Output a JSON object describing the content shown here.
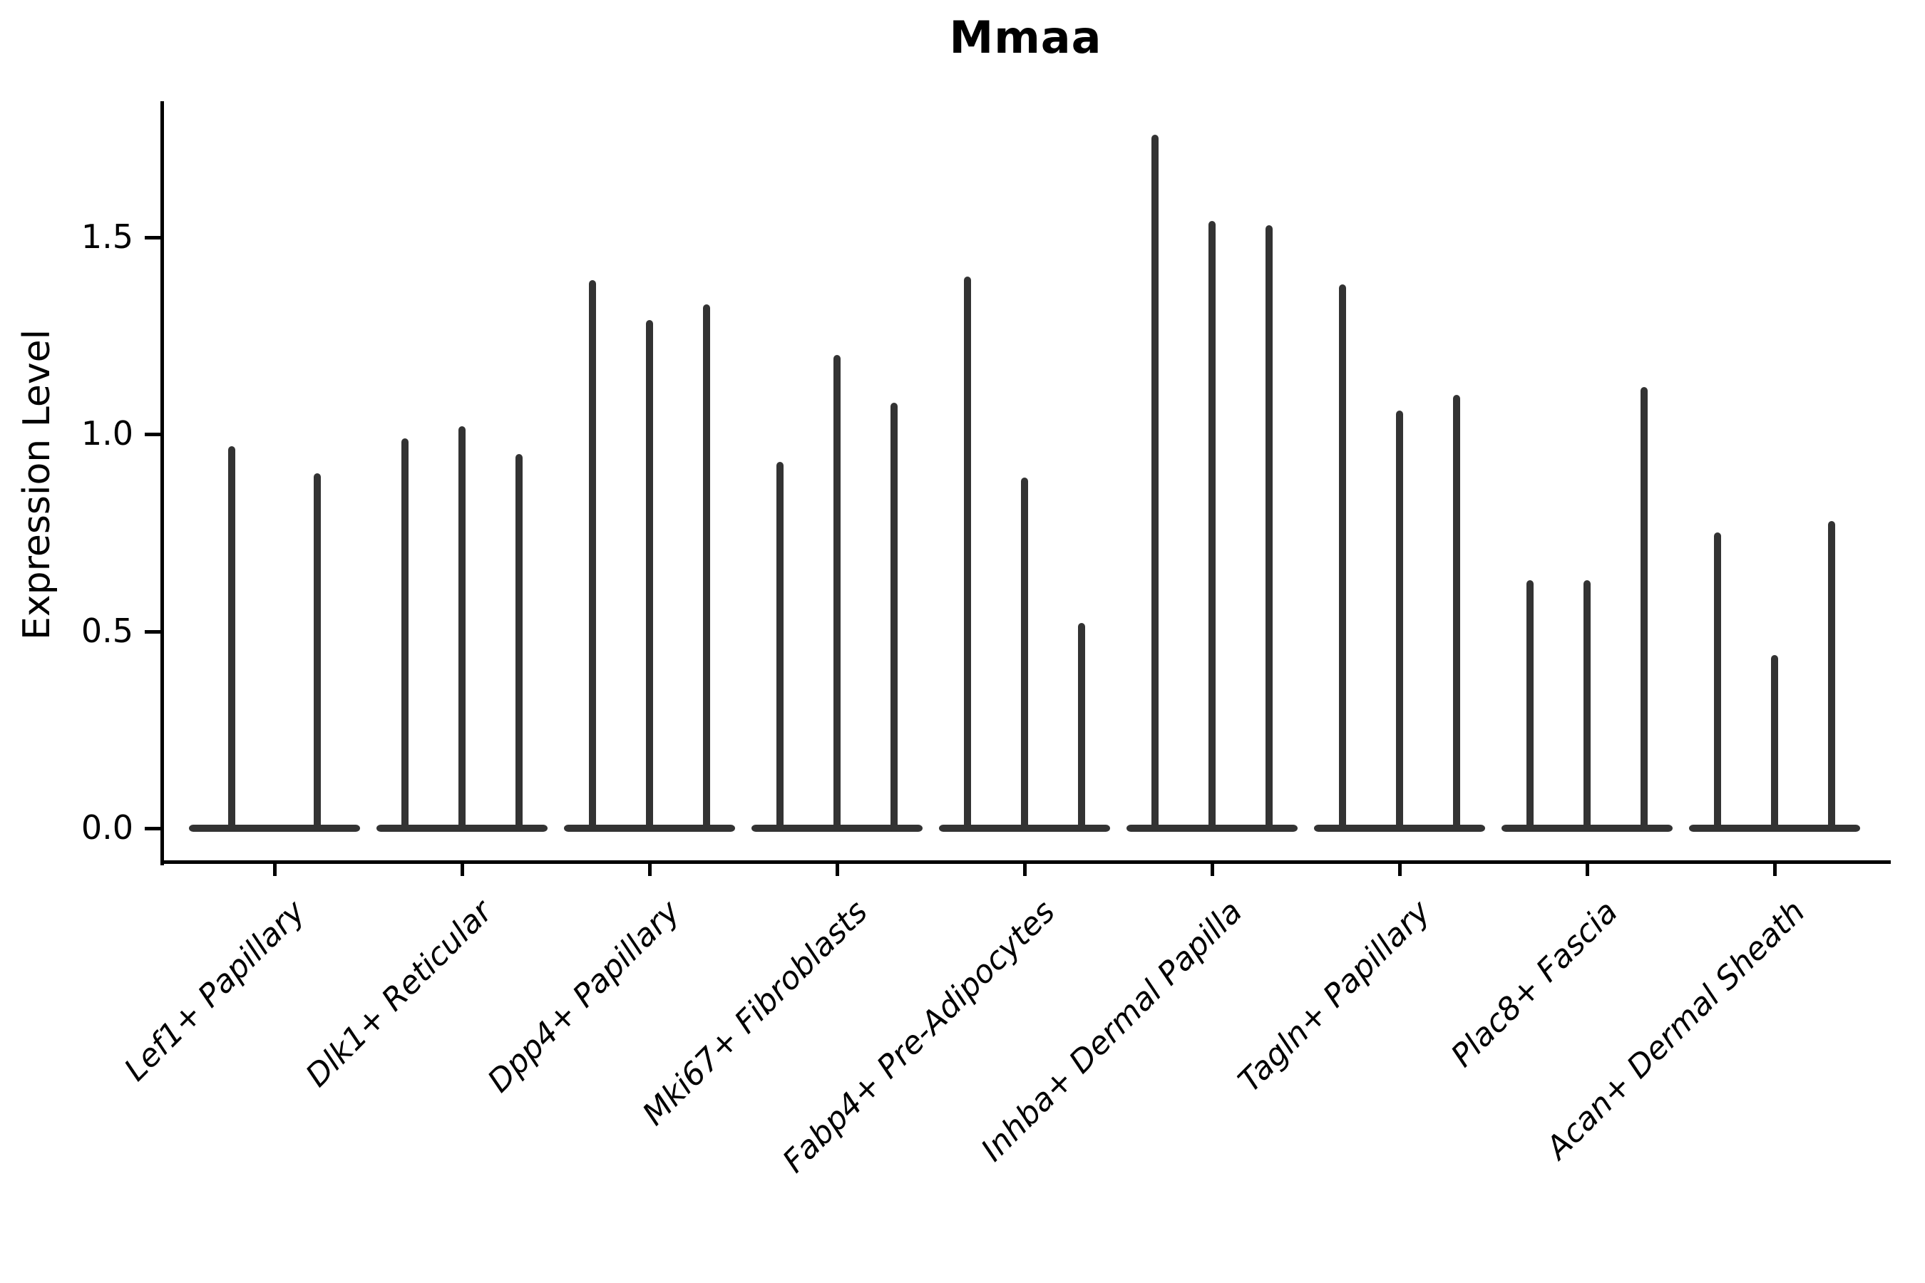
{
  "chart_data": {
    "type": "violin",
    "title": "Mmaa",
    "ylabel": "Expression Level",
    "yticks": [
      0.0,
      0.5,
      1.0,
      1.5
    ],
    "ylim": [
      -0.085,
      1.845
    ],
    "baseline_value": 0.0,
    "legend": "none",
    "grid": false,
    "note": "Seurat-style stacked violin plot; each cluster shows thin violins (bulk of density at 0) whose spikes reach the listed maximum expression values",
    "groups": [
      {
        "label": "Lef1+ Papillary",
        "violin_max": [
          0.97,
          0.9
        ]
      },
      {
        "label": "Dlk1+ Reticular",
        "violin_max": [
          0.99,
          1.02,
          0.95
        ]
      },
      {
        "label": "Dpp4+ Papillary",
        "violin_max": [
          1.39,
          1.29,
          1.33
        ]
      },
      {
        "label": "Mki67+ Fibroblasts",
        "violin_max": [
          0.93,
          1.2,
          1.08
        ]
      },
      {
        "label": "Fabp4+ Pre-Adipocytes",
        "violin_max": [
          1.4,
          0.89,
          0.52
        ]
      },
      {
        "label": "Inhba+ Dermal Papilla",
        "violin_max": [
          1.76,
          1.54,
          1.53
        ]
      },
      {
        "label": "Tagln+ Papillary",
        "violin_max": [
          1.38,
          1.06,
          1.1
        ]
      },
      {
        "label": "Plac8+ Fascia",
        "violin_max": [
          0.63,
          0.63,
          1.12
        ]
      },
      {
        "label": "Acan+ Dermal Sheath",
        "violin_max": [
          0.75,
          0.44,
          0.78
        ]
      }
    ],
    "colors": {
      "violin": "#333333",
      "axis": "#000000",
      "background": "#ffffff"
    }
  }
}
